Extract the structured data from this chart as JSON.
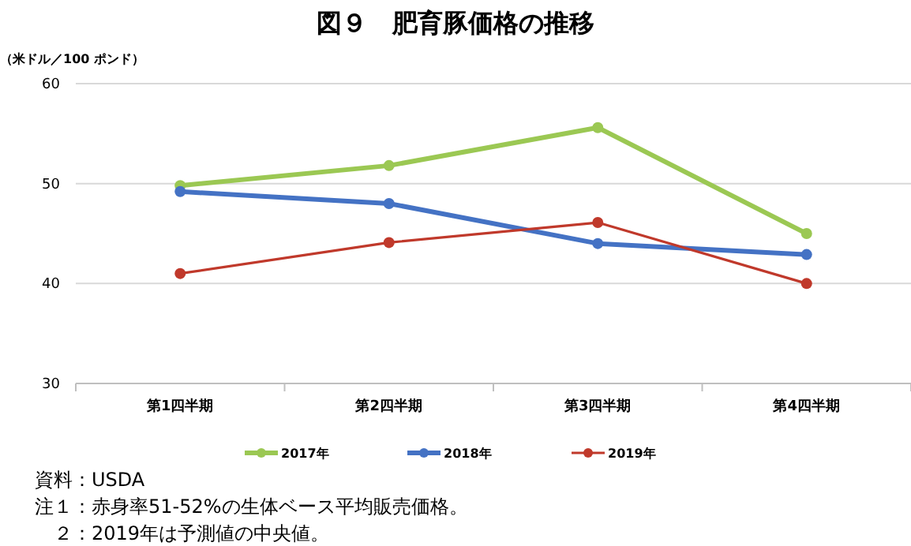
{
  "chart_data": {
    "type": "line",
    "title": "図９　肥育豚価格の推移",
    "ylabel": "（米ドル／100 ポンド）",
    "categories": [
      "第1四半期",
      "第2四半期",
      "第3四半期",
      "第4四半期"
    ],
    "series": [
      {
        "name": "2017年",
        "color": "#9bc853",
        "values": [
          49.8,
          51.8,
          55.6,
          45.0
        ]
      },
      {
        "name": "2018年",
        "color": "#4472c4",
        "values": [
          49.2,
          48.0,
          44.0,
          42.9
        ]
      },
      {
        "name": "2019年",
        "color": "#c0392b",
        "values": [
          41.0,
          44.1,
          46.1,
          40.0
        ]
      }
    ],
    "ylim": [
      30,
      60
    ],
    "yticks": [
      30,
      40,
      50,
      60
    ],
    "grid": "y",
    "legend": "bottom",
    "marker": "circle",
    "line_style": "solid",
    "annotations": [
      "資料：USDA",
      "注１：赤身率51-52%の生体ベース平均販売価格。",
      "　２：2019年は予測値の中央値。"
    ]
  }
}
